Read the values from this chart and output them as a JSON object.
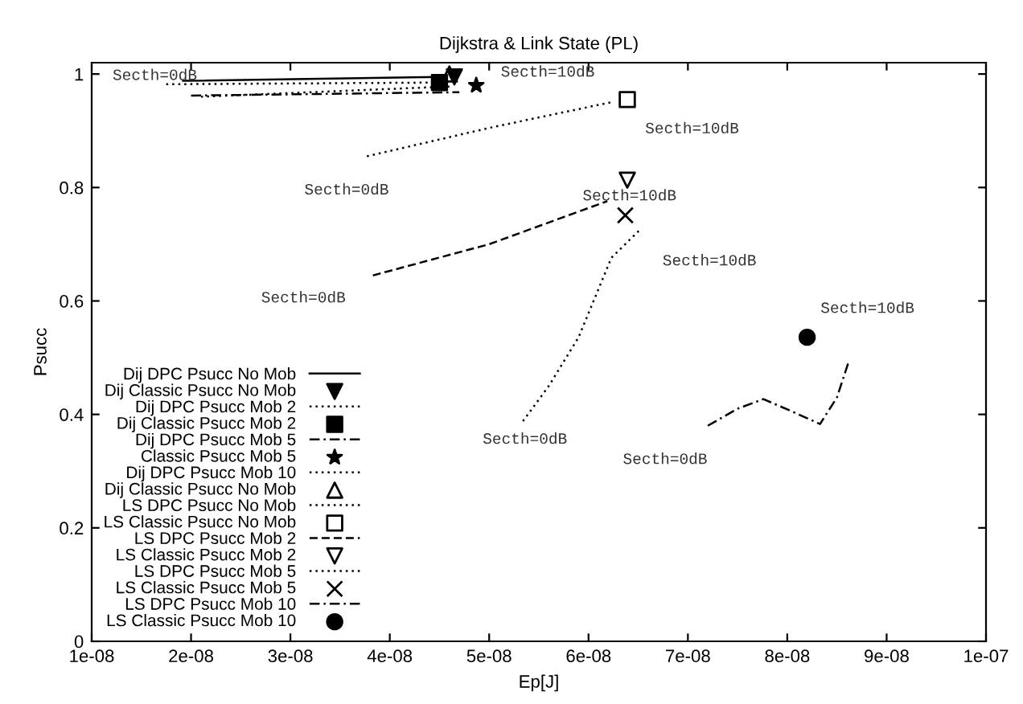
{
  "chart_data": {
    "type": "line",
    "title": "Dijkstra & Link State (PL)",
    "xlabel": "Ep[J]",
    "ylabel": "Psucc",
    "xlim": [
      1e-08,
      1e-07
    ],
    "ylim": [
      0,
      1.02
    ],
    "xticks": [
      {
        "value": 1e-08,
        "label": "1e-08"
      },
      {
        "value": 2e-08,
        "label": "2e-08"
      },
      {
        "value": 3e-08,
        "label": "3e-08"
      },
      {
        "value": 4e-08,
        "label": "4e-08"
      },
      {
        "value": 5e-08,
        "label": "5e-08"
      },
      {
        "value": 6e-08,
        "label": "6e-08"
      },
      {
        "value": 7e-08,
        "label": "7e-08"
      },
      {
        "value": 8e-08,
        "label": "8e-08"
      },
      {
        "value": 9e-08,
        "label": "9e-08"
      },
      {
        "value": 1e-07,
        "label": "1e-07"
      }
    ],
    "yticks": [
      0,
      0.2,
      0.4,
      0.6,
      0.8,
      1
    ],
    "grid": false,
    "legend": "left",
    "series": [
      {
        "name": "Dij DPC Psucc No Mob",
        "line_style": "solid",
        "color": "#000000",
        "x": [
          1.92e-08,
          4.5e-08
        ],
        "values": [
          0.988,
          0.995
        ]
      },
      {
        "name": "Dij Classic Psucc No Mob",
        "type": "scatter",
        "marker": "triangle_down",
        "color": "#000000",
        "x": [
          4.65e-08
        ],
        "values": [
          0.995
        ]
      },
      {
        "name": "Dij DPC Psucc Mob 2",
        "line_style": "dotted",
        "color": "#000000",
        "x": [
          1.75e-08,
          4.5e-08
        ],
        "values": [
          0.982,
          0.985
        ]
      },
      {
        "name": "Dij Classic Psucc Mob 2",
        "type": "scatter",
        "marker": "square",
        "color": "#000000",
        "x": [
          4.5e-08
        ],
        "values": [
          0.985
        ]
      },
      {
        "name": "Dij DPC Psucc Mob 5",
        "line_style": "dashdot",
        "color": "#000000",
        "x": [
          2e-08,
          4.7e-08
        ],
        "values": [
          0.962,
          0.968
        ]
      },
      {
        "name": "Classic Psucc Mob 5",
        "type": "scatter",
        "marker": "star",
        "color": "#000000",
        "x": [
          4.87e-08
        ],
        "values": [
          0.98
        ]
      },
      {
        "name": "Dij DPC Psucc Mob 10",
        "line_style": "dotted",
        "color": "#000000",
        "x": [
          2.1e-08,
          4.6e-08
        ],
        "values": [
          0.96,
          0.978
        ]
      },
      {
        "name": "Dij Classic Psucc No Mob",
        "type": "scatter",
        "marker": "triangle_open",
        "color": "#000000",
        "x": [
          4.6e-08
        ],
        "values": [
          1.0
        ]
      },
      {
        "name": "LS DPC Psucc No Mob",
        "line_style": "dotted",
        "color": "#000000",
        "x": [
          3.77e-08,
          5e-08,
          6.22e-08
        ],
        "values": [
          0.855,
          0.905,
          0.95
        ]
      },
      {
        "name": "LS Classic Psucc No Mob",
        "type": "scatter",
        "marker": "square_open",
        "color": "#000000",
        "x": [
          6.39e-08
        ],
        "values": [
          0.955
        ]
      },
      {
        "name": "LS DPC Psucc Mob 2",
        "line_style": "dashed",
        "color": "#000000",
        "x": [
          3.83e-08,
          5e-08,
          6.19e-08
        ],
        "values": [
          0.645,
          0.7,
          0.776
        ]
      },
      {
        "name": "LS Classic Psucc Mob 2",
        "type": "scatter",
        "marker": "triangle_down_open",
        "color": "#000000",
        "x": [
          6.39e-08
        ],
        "values": [
          0.813
        ]
      },
      {
        "name": "LS DPC Psucc Mob 5",
        "line_style": "dotted",
        "color": "#000000",
        "x": [
          5.34e-08,
          5.6e-08,
          5.9e-08,
          6.23e-08,
          6.52e-08
        ],
        "values": [
          0.388,
          0.45,
          0.536,
          0.676,
          0.726
        ]
      },
      {
        "name": "LS Classic Psucc Mob 5",
        "type": "scatter",
        "marker": "cross",
        "color": "#000000",
        "x": [
          6.37e-08
        ],
        "values": [
          0.751
        ]
      },
      {
        "name": "LS DPC Psucc Mob 10",
        "line_style": "dashdot",
        "color": "#000000",
        "x": [
          7.2e-08,
          7.5e-08,
          7.76e-08,
          8.05e-08,
          8.33e-08,
          8.5e-08,
          8.62e-08
        ],
        "values": [
          0.38,
          0.41,
          0.427,
          0.405,
          0.383,
          0.43,
          0.494
        ]
      },
      {
        "name": "LS Classic Psucc Mob 10",
        "type": "scatter",
        "marker": "circle",
        "color": "#000000",
        "x": [
          8.2e-08
        ],
        "values": [
          0.536
        ]
      }
    ],
    "annotations": [
      {
        "text": "Secth=0dB",
        "x": 1.75e-08,
        "y": 0.982
      },
      {
        "text": "Secth=10dB",
        "x": 4.87e-08,
        "y": 0.98
      },
      {
        "text": "Secth=10dB",
        "x": 6.39e-08,
        "y": 0.955
      },
      {
        "text": "Secth=0dB",
        "x": 3.77e-08,
        "y": 0.855
      },
      {
        "text": "Secth=10dB",
        "x": 6.39e-08,
        "y": 0.813
      },
      {
        "text": "Secth=10dB",
        "x": 6.52e-08,
        "y": 0.726
      },
      {
        "text": "Secth=0dB",
        "x": 3.83e-08,
        "y": 0.645
      },
      {
        "text": "Secth=0dB",
        "x": 5.34e-08,
        "y": 0.388
      },
      {
        "text": "Secth=0dB",
        "x": 7.2e-08,
        "y": 0.38
      },
      {
        "text": "Secth=10dB",
        "x": 8.2e-08,
        "y": 0.536
      }
    ]
  }
}
